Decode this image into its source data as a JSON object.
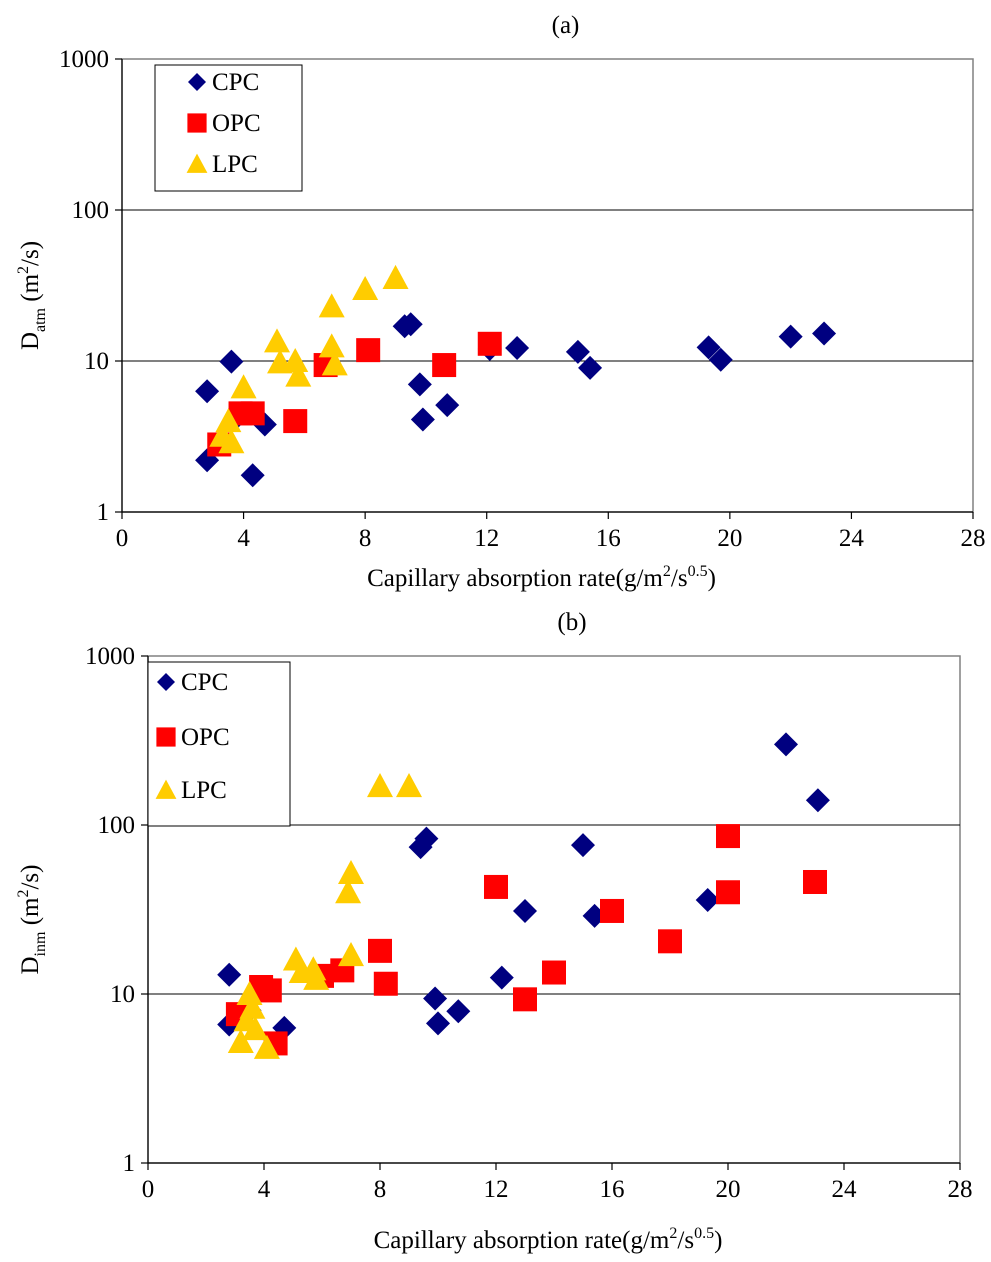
{
  "chart_data": [
    {
      "type": "scatter",
      "title": "(a)",
      "ylabel_main": "D",
      "ylabel_sub": "atm",
      "ylabel_unit_pre": " (m",
      "ylabel_unit_sup": "2",
      "ylabel_unit_post": "/s)",
      "xlabel_pre": "Capillary absorption rate(g/m",
      "xlabel_sup1": "2",
      "xlabel_mid": "/s",
      "xlabel_sup2": "0.5",
      "xlabel_post": ")",
      "xlim": [
        0,
        28
      ],
      "ylim": [
        1,
        1000
      ],
      "y_scale": "log",
      "x_ticks": [
        "0",
        "4",
        "8",
        "12",
        "16",
        "20",
        "24",
        "28"
      ],
      "y_ticks": [
        "1",
        "10",
        "100",
        "1000"
      ],
      "grid": "horizontal",
      "legend_position": "top-left",
      "series": [
        {
          "name": "CPC",
          "marker": "diamond",
          "color": "#000080",
          "points": [
            [
              2.8,
              6.3
            ],
            [
              2.8,
              2.2
            ],
            [
              3.6,
              9.9
            ],
            [
              3.7,
              4.1
            ],
            [
              4.3,
              1.75
            ],
            [
              4.7,
              3.8
            ],
            [
              9.3,
              17
            ],
            [
              9.5,
              17.5
            ],
            [
              9.8,
              7
            ],
            [
              9.9,
              4.1
            ],
            [
              10.7,
              5.1
            ],
            [
              12.1,
              12
            ],
            [
              13,
              12.2
            ],
            [
              15,
              11.5
            ],
            [
              15.4,
              9
            ],
            [
              19.3,
              12.3
            ],
            [
              19.7,
              10.2
            ],
            [
              22,
              14.5
            ],
            [
              23.1,
              15.2
            ]
          ]
        },
        {
          "name": "OPC",
          "marker": "square",
          "color": "#ff0000",
          "points": [
            [
              3.2,
              2.8
            ],
            [
              3.9,
              4.5
            ],
            [
              4.3,
              4.5
            ],
            [
              5.7,
              4
            ],
            [
              6.7,
              9.4
            ],
            [
              8.1,
              11.8
            ],
            [
              10.6,
              9.4
            ],
            [
              12.1,
              13
            ]
          ]
        },
        {
          "name": "LPC",
          "marker": "triangle",
          "color": "#ffcc00",
          "points": [
            [
              3.3,
              3.2
            ],
            [
              3.5,
              4
            ],
            [
              3.6,
              2.9
            ],
            [
              4,
              6.7
            ],
            [
              5.1,
              13.5
            ],
            [
              5.2,
              9.8
            ],
            [
              5.7,
              10
            ],
            [
              5.8,
              8
            ],
            [
              6.9,
              23
            ],
            [
              6.9,
              12.5
            ],
            [
              7,
              9.5
            ],
            [
              8,
              30
            ],
            [
              9,
              35.5
            ]
          ]
        }
      ]
    },
    {
      "type": "scatter",
      "title": "(b)",
      "ylabel_main": "D",
      "ylabel_sub": "inm",
      "ylabel_unit_pre": " (m",
      "ylabel_unit_sup": "2",
      "ylabel_unit_post": "/s)",
      "xlabel_pre": "Capillary absorption rate(g/m",
      "xlabel_sup1": "2",
      "xlabel_mid": "/s",
      "xlabel_sup2": "0.5",
      "xlabel_post": ")",
      "xlim": [
        0,
        28
      ],
      "ylim": [
        1,
        1000
      ],
      "y_scale": "log",
      "x_ticks": [
        "0",
        "4",
        "8",
        "12",
        "16",
        "20",
        "24",
        "28"
      ],
      "y_ticks": [
        "1",
        "10",
        "100",
        "1000"
      ],
      "grid": "horizontal",
      "legend_position": "top-left",
      "series": [
        {
          "name": "CPC",
          "marker": "diamond",
          "color": "#000080",
          "points": [
            [
              2.8,
              13
            ],
            [
              2.8,
              6.6
            ],
            [
              3.5,
              8
            ],
            [
              4.7,
              6.3
            ],
            [
              9.4,
              74
            ],
            [
              9.6,
              83
            ],
            [
              9.9,
              9.4
            ],
            [
              10,
              6.7
            ],
            [
              10.7,
              7.9
            ],
            [
              12.2,
              12.5
            ],
            [
              13,
              31
            ],
            [
              15,
              76
            ],
            [
              15.4,
              29
            ],
            [
              19.3,
              36
            ],
            [
              22,
              300
            ],
            [
              23.1,
              140
            ]
          ]
        },
        {
          "name": "OPC",
          "marker": "square",
          "color": "#ff0000",
          "points": [
            [
              3.1,
              7.6
            ],
            [
              3.9,
              11
            ],
            [
              4.2,
              10.5
            ],
            [
              4.4,
              5.1
            ],
            [
              6,
              12.8
            ],
            [
              6.7,
              13.8
            ],
            [
              8,
              18
            ],
            [
              8.2,
              11.5
            ],
            [
              12,
              43
            ],
            [
              13,
              9.3
            ],
            [
              14,
              13.4
            ],
            [
              16,
              31
            ],
            [
              18,
              20.5
            ],
            [
              20,
              86
            ],
            [
              20,
              40
            ],
            [
              23,
              46
            ]
          ]
        },
        {
          "name": "LPC",
          "marker": "triangle",
          "color": "#ffcc00",
          "points": [
            [
              3.2,
              5.2
            ],
            [
              3.4,
              7
            ],
            [
              3.5,
              10
            ],
            [
              3.6,
              8.3
            ],
            [
              3.7,
              6.2
            ],
            [
              4.1,
              4.8
            ],
            [
              5.1,
              16
            ],
            [
              5.3,
              13.5
            ],
            [
              5.7,
              14
            ],
            [
              5.8,
              12.3
            ],
            [
              6.9,
              40
            ],
            [
              7,
              52
            ],
            [
              7,
              17
            ],
            [
              8,
              170
            ],
            [
              9,
              170
            ]
          ]
        }
      ]
    }
  ]
}
